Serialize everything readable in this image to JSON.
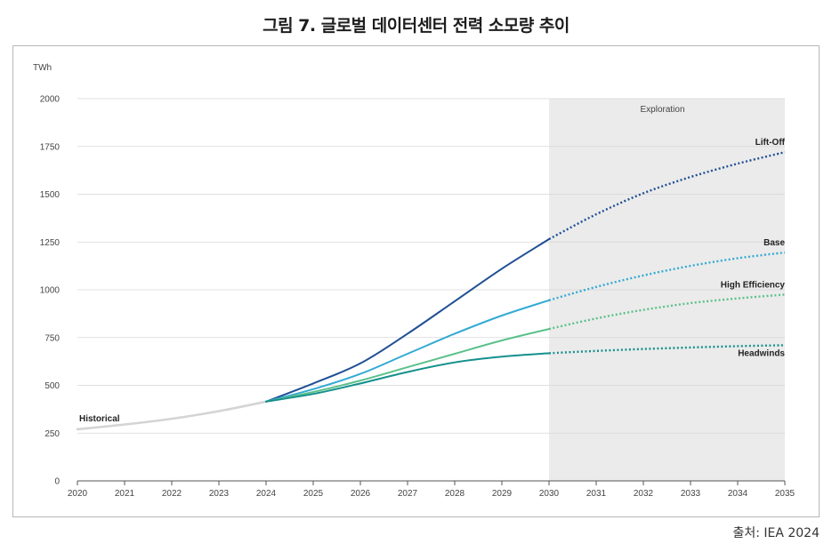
{
  "figure": {
    "title": "그림 7. 글로벌 데이터센터 전력 소모량 추이",
    "source": "출처: IEA 2024"
  },
  "chart_data": {
    "type": "line",
    "ylabel": "TWh",
    "ylim": [
      0,
      2000
    ],
    "yticks": [
      0,
      250,
      500,
      750,
      1000,
      1250,
      1500,
      1750,
      2000
    ],
    "x": [
      2020,
      2021,
      2022,
      2023,
      2024,
      2025,
      2026,
      2027,
      2028,
      2029,
      2030,
      2031,
      2032,
      2033,
      2034,
      2035
    ],
    "grid": "horizontal",
    "shaded_region": {
      "label": "Exploration",
      "from": 2030,
      "to": 2035,
      "color": "#ebebeb"
    },
    "projection_start": 2030,
    "series": [
      {
        "name": "Historical",
        "color": "#d4d4d4",
        "points": [
          [
            2020,
            270
          ],
          [
            2021,
            295
          ],
          [
            2022,
            325
          ],
          [
            2023,
            365
          ],
          [
            2024,
            415
          ]
        ]
      },
      {
        "name": "Lift-Off",
        "color": "#1f4f94",
        "points": [
          [
            2024,
            415
          ],
          [
            2025,
            510
          ],
          [
            2026,
            615
          ],
          [
            2027,
            770
          ],
          [
            2028,
            940
          ],
          [
            2029,
            1110
          ],
          [
            2030,
            1265
          ],
          [
            2031,
            1395
          ],
          [
            2032,
            1505
          ],
          [
            2033,
            1590
          ],
          [
            2034,
            1660
          ],
          [
            2035,
            1720
          ]
        ]
      },
      {
        "name": "Base",
        "color": "#33aad4",
        "points": [
          [
            2024,
            415
          ],
          [
            2025,
            480
          ],
          [
            2026,
            560
          ],
          [
            2027,
            665
          ],
          [
            2028,
            770
          ],
          [
            2029,
            865
          ],
          [
            2030,
            945
          ],
          [
            2031,
            1015
          ],
          [
            2032,
            1075
          ],
          [
            2033,
            1125
          ],
          [
            2034,
            1165
          ],
          [
            2035,
            1195
          ]
        ]
      },
      {
        "name": "High Efficiency",
        "color": "#5bc08a",
        "points": [
          [
            2024,
            415
          ],
          [
            2025,
            465
          ],
          [
            2026,
            525
          ],
          [
            2027,
            595
          ],
          [
            2028,
            665
          ],
          [
            2029,
            735
          ],
          [
            2030,
            795
          ],
          [
            2031,
            850
          ],
          [
            2032,
            895
          ],
          [
            2033,
            930
          ],
          [
            2034,
            955
          ],
          [
            2035,
            975
          ]
        ]
      },
      {
        "name": "Headwinds",
        "color": "#15908c",
        "points": [
          [
            2024,
            415
          ],
          [
            2025,
            455
          ],
          [
            2026,
            510
          ],
          [
            2027,
            570
          ],
          [
            2028,
            620
          ],
          [
            2029,
            650
          ],
          [
            2030,
            668
          ],
          [
            2031,
            680
          ],
          [
            2032,
            690
          ],
          [
            2033,
            698
          ],
          [
            2034,
            705
          ],
          [
            2035,
            710
          ]
        ]
      }
    ]
  }
}
